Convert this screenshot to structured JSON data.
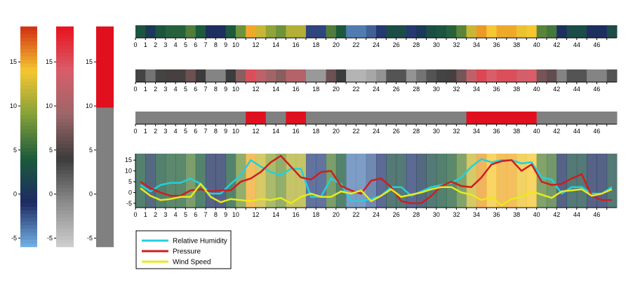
{
  "chart_data": {
    "type": "heatmap",
    "x": [
      0,
      1,
      2,
      3,
      4,
      5,
      6,
      7,
      8,
      9,
      10,
      11,
      12,
      13,
      14,
      15,
      16,
      17,
      18,
      19,
      20,
      21,
      22,
      23,
      24,
      25,
      26,
      27,
      28,
      29,
      30,
      31,
      32,
      33,
      34,
      35,
      36,
      37,
      38,
      39,
      40,
      41,
      42,
      43,
      44,
      45,
      46,
      47
    ],
    "x_ticks": [
      0,
      1,
      2,
      3,
      4,
      5,
      6,
      7,
      8,
      9,
      10,
      12,
      14,
      16,
      18,
      20,
      22,
      24,
      26,
      28,
      30,
      32,
      34,
      36,
      38,
      40,
      42,
      44,
      46
    ],
    "ylim": [
      -6,
      19
    ],
    "colorbar_ticks": [
      -5,
      0,
      5,
      10,
      15
    ],
    "series": [
      {
        "name": "Relative Humidity",
        "values": [
          3.5,
          0.5,
          3.5,
          4.5,
          4.5,
          6.5,
          4.0,
          -0.5,
          -0.5,
          4.0,
          8.0,
          15.0,
          12.0,
          9.5,
          8.0,
          11.0,
          11.0,
          -2.0,
          -2.0,
          6.5,
          4.0,
          -4.0,
          -4.0,
          -3.0,
          -1.5,
          2.5,
          2.5,
          -1.5,
          0.5,
          2.5,
          3.5,
          4.5,
          7.0,
          12.0,
          15.5,
          14.0,
          15.0,
          15.0,
          13.5,
          14.0,
          7.0,
          6.0,
          -0.5,
          2.5,
          2.5,
          -0.5,
          -0.5,
          2.5
        ]
      },
      {
        "name": "Pressure",
        "values": [
          5.0,
          2.0,
          0.0,
          -1.5,
          -1.5,
          1.0,
          1.5,
          0.5,
          1.0,
          1.0,
          5.0,
          6.5,
          9.5,
          14.0,
          17.0,
          12.0,
          7.0,
          6.0,
          9.5,
          10.0,
          3.0,
          1.0,
          -0.5,
          5.5,
          6.5,
          2.5,
          -4.0,
          -5.0,
          -5.0,
          -1.5,
          3.0,
          5.0,
          3.0,
          2.5,
          7.0,
          13.0,
          14.5,
          15.0,
          10.0,
          13.0,
          5.0,
          3.5,
          4.0,
          6.5,
          8.5,
          -1.5,
          -3.5,
          -3.5
        ]
      },
      {
        "name": "Wind Speed",
        "values": [
          2.0,
          -1.5,
          -3.5,
          -3.0,
          -2.0,
          -2.0,
          4.0,
          -2.0,
          -4.5,
          -3.0,
          -3.5,
          -4.0,
          -3.0,
          -3.5,
          -2.5,
          -5.0,
          -2.0,
          -0.5,
          -2.0,
          -2.0,
          0.5,
          -0.5,
          1.0,
          -4.0,
          -1.5,
          1.5,
          -2.0,
          -1.0,
          0.0,
          1.5,
          2.5,
          2.5,
          0.0,
          -1.0,
          -3.5,
          -2.0,
          -6.0,
          -3.0,
          -2.0,
          0.5,
          -1.0,
          -2.5,
          0.5,
          1.0,
          1.5,
          -1.5,
          -0.5,
          1.5
        ]
      }
    ],
    "legend": {
      "placement": "bottom-left",
      "box_outline": "#000000"
    },
    "grid": false,
    "colors": {
      "Relative Humidity": "#22d0e0",
      "Pressure": "#cc1f1f",
      "Wind Speed": "#e8ea1c",
      "binary_high": "#e0101e",
      "binary_low": "#808080",
      "tick_color": "#000000"
    },
    "colormaps": {
      "diverging": [
        "#74b3e6",
        "#1d2a63",
        "#1b5a3c",
        "#84a03a",
        "#f6c730",
        "#d12f14"
      ],
      "diverging_gray": [
        "#cfcfcf",
        "#8c8c8c",
        "#3c3c3c",
        "#9b6668",
        "#d85e6a",
        "#e8121e"
      ],
      "binary_threshold": 10
    }
  }
}
